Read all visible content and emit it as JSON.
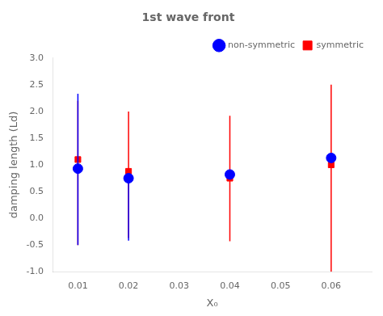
{
  "chart_data": {
    "type": "scatter",
    "title": "1st wave front",
    "xlabel": "X₀",
    "ylabel": "damping length (Ld)",
    "x": [
      0.01,
      0.02,
      0.04,
      0.06
    ],
    "series": [
      {
        "name": "symmetric",
        "color": "#ff0000",
        "marker": "square",
        "values": [
          1.1,
          0.88,
          0.75,
          1.0
        ],
        "yerr_low": [
          1.6,
          1.25,
          1.18,
          2.0
        ],
        "yerr_high": [
          1.1,
          1.12,
          1.17,
          1.5
        ]
      },
      {
        "name": "non-symmetric",
        "color": "#0000ff",
        "marker": "circle",
        "values": [
          0.93,
          0.75,
          0.82,
          1.13
        ],
        "yerr_low": [
          1.43,
          1.17,
          0.0,
          0.0
        ],
        "yerr_high": [
          1.4,
          0.0,
          0.0,
          0.0
        ]
      }
    ],
    "xlim": [
      0.005,
      0.068
    ],
    "ylim": [
      -1.0,
      3.0
    ],
    "xticks": [
      0.01,
      0.02,
      0.03,
      0.04,
      0.05,
      0.06
    ],
    "yticks": [
      {
        "value": -1.0,
        "label": "-1.0"
      },
      -0.5,
      {
        "value": 0.0,
        "label": "0.0"
      },
      0.5,
      {
        "value": 1.0,
        "label": "1.0"
      },
      1.5,
      {
        "value": 2.0,
        "label": "2.0"
      },
      2.5,
      {
        "value": 3.0,
        "label": "3.0"
      }
    ],
    "grid": false,
    "legend": "upper right"
  }
}
